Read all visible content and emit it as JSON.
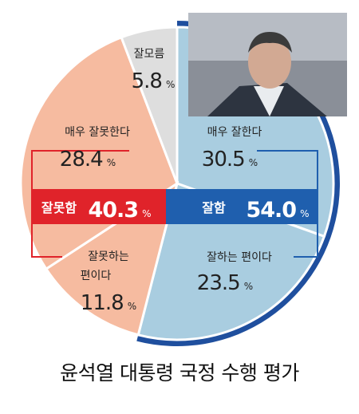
{
  "chart_data": {
    "type": "pie",
    "title": "윤석열 대통령 국정 수행 평가",
    "slices": [
      {
        "label": "매우 잘한다",
        "value": 30.5,
        "color": "#a9cde0"
      },
      {
        "label": "잘하는 편이다",
        "value": 23.5,
        "color": "#a9cde0"
      },
      {
        "label": "잘못하는 편이다",
        "value": 11.8,
        "color": "#f6bba0"
      },
      {
        "label": "매우 잘못한다",
        "value": 28.4,
        "color": "#f6bba0"
      },
      {
        "label": "잘모름",
        "value": 5.8,
        "color": "#dedede"
      }
    ],
    "groups": [
      {
        "label": "잘함",
        "value": 54.0,
        "color": "#1f5fae"
      },
      {
        "label": "잘못함",
        "value": 40.3,
        "color": "#e0232a"
      }
    ],
    "unit": "%"
  },
  "texts": {
    "very_good_label": "매우 잘한다",
    "very_good_value": "30.5",
    "good_label": "잘하는 편이다",
    "good_value": "23.5",
    "bad_label_line1": "잘못하는",
    "bad_label_line2": "편이다",
    "bad_value": "11.8",
    "very_bad_label": "매우 잘못한다",
    "very_bad_value": "28.4",
    "unknown_label": "잘모름",
    "unknown_value": "5.8",
    "positive_label": "잘함",
    "positive_value": "54.0",
    "negative_label": "잘못함",
    "negative_value": "40.3",
    "percent": "%"
  }
}
